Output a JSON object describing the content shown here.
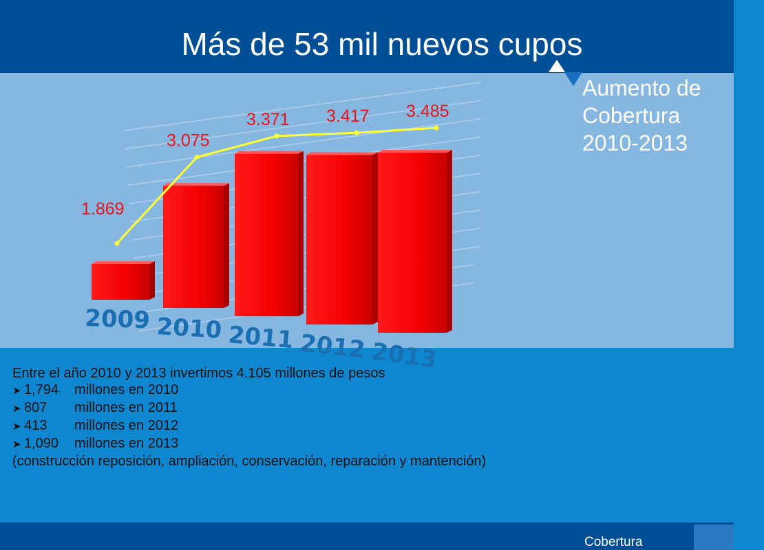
{
  "title": "Más de 53 mil nuevos cupos",
  "side_label": {
    "line1": "Aumento de",
    "line2": "Cobertura",
    "line3": "2010-2013"
  },
  "info": {
    "intro": "Entre el año 2010 y 2013 invertimos 4.105 millones de pesos",
    "items": [
      {
        "amount": "1,794",
        "text": "millones en 2010"
      },
      {
        "amount": "807",
        "text": "millones en 2011"
      },
      {
        "amount": "413",
        "text": "millones en 2012"
      },
      {
        "amount": "1,090",
        "text": "millones en 2013"
      }
    ],
    "note": "(construcción reposición, ampliación, conservación, reparación y mantención)"
  },
  "footer": {
    "label": "Cobertura"
  },
  "colors": {
    "header": "#004f96",
    "panel": "#85b7e0",
    "body": "#0e87d0",
    "bar": "#ff0000",
    "line": "#ffff33",
    "value_label": "#e8161b",
    "year_label": "#1a6fb3"
  },
  "chart_data": {
    "type": "bar",
    "categories": [
      "2009",
      "2010",
      "2011",
      "2012",
      "2013"
    ],
    "series": [
      {
        "values": [
          1869,
          3075,
          3371,
          3417,
          3485
        ],
        "labels": [
          "1.869",
          "3.075",
          "3.371",
          "3.417",
          "3.485"
        ]
      }
    ],
    "overlay": "line",
    "title": "",
    "xlabel": "",
    "ylabel": ""
  }
}
